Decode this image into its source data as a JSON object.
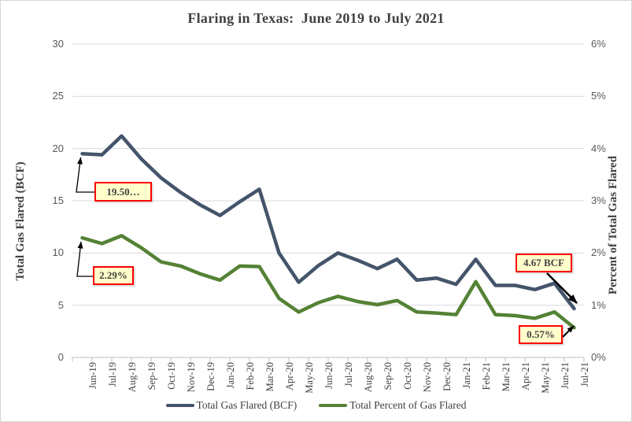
{
  "chart": {
    "title": "Flaring in Texas:  June 2019 to July 2021",
    "left_axis": {
      "title": "Total Gas Flared (BCF)",
      "ticks": [
        "0",
        "5",
        "10",
        "15",
        "20",
        "25",
        "30"
      ]
    },
    "right_axis": {
      "title": "Percent of Total Gas Flared",
      "ticks": [
        "0%",
        "1%",
        "2%",
        "3%",
        "4%",
        "5%",
        "6%"
      ]
    },
    "annotations": [
      {
        "text": "19.50…",
        "points_to": "first value of Total Gas Flared (Jun-19)"
      },
      {
        "text": "2.29%",
        "points_to": "first value of Total Percent of Gas Flared (Jun-19)"
      },
      {
        "text": "4.67 BCF",
        "points_to": "last value of Total Gas Flared (Jul-21)"
      },
      {
        "text": "0.57%",
        "points_to": "last value of Total Percent of Gas Flared (Jul-21)"
      }
    ],
    "colors": {
      "bcf_line": "#44546A",
      "pct_line": "#548235",
      "gridline": "#D9D9D9",
      "axis_line": "#BFBFBF",
      "tick_label": "#595959",
      "text": "#404040",
      "annotation_fill": "#FFFFCC",
      "annotation_border": "#FF0000"
    }
  },
  "chart_data": {
    "type": "line",
    "title": "Flaring in Texas: June 2019 to July 2021",
    "categories": [
      "Jun-19",
      "Jul-19",
      "Aug-19",
      "Sep-19",
      "Oct-19",
      "Nov-19",
      "Dec-19",
      "Jan-20",
      "Feb-20",
      "Mar-20",
      "Apr-20",
      "May-20",
      "Jun-20",
      "Jul-20",
      "Aug-20",
      "Sep-20",
      "Oct-20",
      "Nov-20",
      "Dec-20",
      "Jan-21",
      "Feb-21",
      "Mar-21",
      "Apr-21",
      "May-21",
      "Jun-21",
      "Jul-21"
    ],
    "series": [
      {
        "name": "Total Gas Flared (BCF)",
        "axis": "left",
        "color": "#44546A",
        "values": [
          19.5,
          19.4,
          21.2,
          19.0,
          17.2,
          15.8,
          14.6,
          13.6,
          14.9,
          16.1,
          10.0,
          7.2,
          8.8,
          10.0,
          9.3,
          8.5,
          9.4,
          7.4,
          7.6,
          7.0,
          9.4,
          6.9,
          6.9,
          6.5,
          7.1,
          4.67
        ]
      },
      {
        "name": "Total Percent of Gas Flared",
        "axis": "right",
        "color": "#548235",
        "values": [
          2.29,
          2.18,
          2.33,
          2.1,
          1.83,
          1.75,
          1.6,
          1.48,
          1.75,
          1.74,
          1.13,
          0.87,
          1.05,
          1.17,
          1.07,
          1.01,
          1.09,
          0.87,
          0.85,
          0.82,
          1.45,
          0.82,
          0.8,
          0.75,
          0.87,
          0.57
        ]
      }
    ],
    "left_ylabel": "Total Gas Flared (BCF)",
    "right_ylabel": "Percent of Total Gas Flared",
    "left_ylim": [
      0,
      30
    ],
    "right_ylim": [
      0,
      6
    ],
    "grid": true,
    "legend_position": "bottom"
  }
}
